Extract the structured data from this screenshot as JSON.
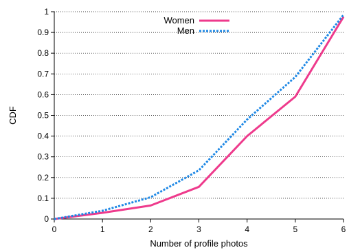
{
  "chart_data": {
    "type": "line",
    "xlabel": "Number of profile photos",
    "ylabel": "CDF",
    "xlim": [
      0,
      6
    ],
    "ylim": [
      0,
      1
    ],
    "x_ticks": [
      "0",
      "1",
      "2",
      "3",
      "4",
      "5",
      "6"
    ],
    "y_ticks": [
      "0",
      "0.1",
      "0.2",
      "0.3",
      "0.4",
      "0.5",
      "0.6",
      "0.7",
      "0.8",
      "0.9",
      "1"
    ],
    "grid": "horizontal dotted",
    "legend_position": "top-center",
    "series": [
      {
        "name": "Women",
        "color": "#ee3a8c",
        "style": "solid",
        "x": [
          0,
          1,
          2,
          3,
          4,
          5,
          6
        ],
        "values": [
          0,
          0.03,
          0.065,
          0.155,
          0.4,
          0.59,
          0.975
        ]
      },
      {
        "name": "Men",
        "color": "#1e88e5",
        "style": "dotted",
        "x": [
          0,
          1,
          2,
          3,
          4,
          5,
          6
        ],
        "values": [
          0,
          0.04,
          0.105,
          0.235,
          0.48,
          0.685,
          0.985
        ]
      }
    ]
  }
}
